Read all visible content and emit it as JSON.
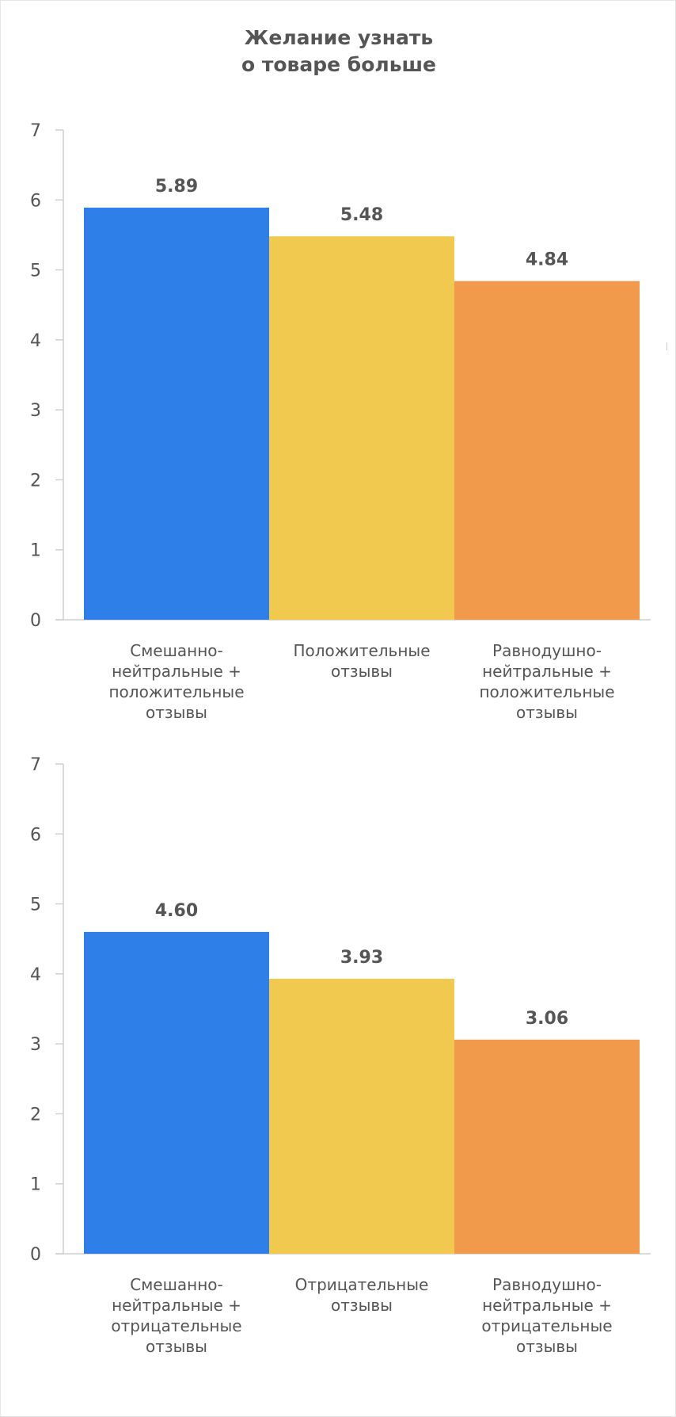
{
  "title_lines": [
    "Желание узнать",
    "о товаре больше"
  ],
  "colors": {
    "blue": "#2f7fe8",
    "yellow": "#f2c94f",
    "orange": "#f29a4c",
    "axis": "#cfcfcf",
    "text": "#555555"
  },
  "chart_data": [
    {
      "type": "bar",
      "title": "Желание узнать о товаре больше",
      "ylim": [
        0,
        7
      ],
      "yticks": [
        "0",
        "1",
        "2",
        "3",
        "4",
        "5",
        "6",
        "7"
      ],
      "categories": [
        [
          "Смешанно-",
          "нейтральные +",
          "положительные",
          "отзывы"
        ],
        [
          "Положительные",
          "отзывы"
        ],
        [
          "Равнодушно-",
          "нейтральные +",
          "положительные",
          "отзывы"
        ]
      ],
      "values": [
        5.89,
        5.48,
        4.84
      ],
      "value_labels": [
        "5.89",
        "5.48",
        "4.84"
      ],
      "bar_colors": [
        "#2f7fe8",
        "#f2c94f",
        "#f29a4c"
      ],
      "grid": false,
      "legend": "none"
    },
    {
      "type": "bar",
      "ylim": [
        0,
        7
      ],
      "yticks": [
        "0",
        "1",
        "2",
        "3",
        "4",
        "5",
        "6",
        "7"
      ],
      "categories": [
        [
          "Смешанно-",
          "нейтральные +",
          "отрицательные",
          "отзывы"
        ],
        [
          "Отрицательные",
          "отзывы"
        ],
        [
          "Равнодушно-",
          "нейтральные +",
          "отрицательные",
          "отзывы"
        ]
      ],
      "values": [
        4.6,
        3.93,
        3.06
      ],
      "value_labels": [
        "4.60",
        "3.93",
        "3.06"
      ],
      "bar_colors": [
        "#2f7fe8",
        "#f2c94f",
        "#f29a4c"
      ],
      "grid": false,
      "legend": "none"
    }
  ]
}
